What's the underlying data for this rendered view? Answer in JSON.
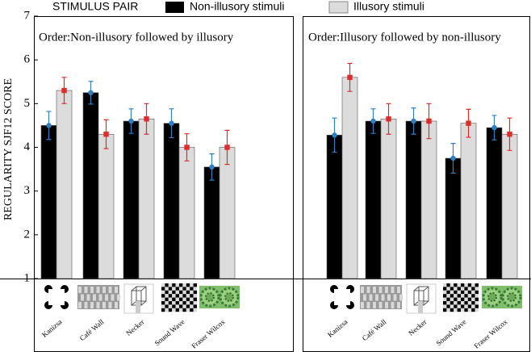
{
  "chart_data": [
    {
      "type": "bar",
      "title": "Order:Non-illusory followed by illusory",
      "ylabel": "REGULARITY SJF12 SCORE",
      "legend_title": "STIMULUS PAIR",
      "ylim": [
        1,
        7
      ],
      "yticks": [
        1,
        2,
        3,
        4,
        5,
        6,
        7
      ],
      "categories": [
        "Kanizsa",
        "Café Wall",
        "Necker",
        "Sound Wave",
        "Fraser Wilcox"
      ],
      "series": [
        {
          "name": "Non-illusory stimuli",
          "color": "#000000",
          "marker_color": "#2f7fc1",
          "values": [
            4.5,
            5.25,
            4.6,
            4.55,
            3.55
          ],
          "errors": [
            0.32,
            0.26,
            0.28,
            0.33,
            0.3
          ]
        },
        {
          "name": "Illusory stimuli",
          "color": "#dcdcdc",
          "marker_color": "#e02b2b",
          "values": [
            5.3,
            4.3,
            4.65,
            4.0,
            4.0
          ],
          "errors": [
            0.3,
            0.33,
            0.35,
            0.31,
            0.39
          ]
        }
      ]
    },
    {
      "type": "bar",
      "title": "Order:Illusory followed by non-illusory",
      "categories": [
        "Kanizsa",
        "Café Wall",
        "Necker",
        "Sound Wave",
        "Fraser Wilcox"
      ],
      "series": [
        {
          "color": "#000000",
          "marker_color": "#2f7fc1",
          "values": [
            4.28,
            4.6,
            4.6,
            3.75,
            4.45
          ],
          "errors": [
            0.39,
            0.28,
            0.3,
            0.34,
            0.28
          ]
        },
        {
          "color": "#dcdcdc",
          "marker_color": "#e02b2b",
          "values": [
            5.6,
            4.65,
            4.6,
            4.55,
            4.3
          ],
          "errors": [
            0.32,
            0.35,
            0.4,
            0.32,
            0.37
          ]
        }
      ]
    }
  ]
}
